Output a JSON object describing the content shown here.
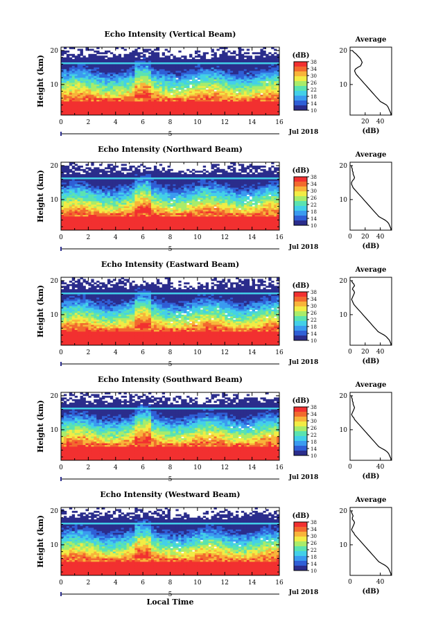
{
  "chart_data": [
    {
      "type": "heatmap",
      "title": "Echo Intensity (Vertical Beam)",
      "ylabel": "Height (km)",
      "xticks": [
        "0",
        "2",
        "4",
        "6",
        "8",
        "10",
        "12",
        "14",
        "16"
      ],
      "yticks": [
        "10",
        "20"
      ],
      "xlim": [
        0,
        16
      ],
      "ylim": [
        1,
        21
      ],
      "date_label": "Jul 2018",
      "day_marker": "5",
      "colorbar": {
        "title": "(dB)",
        "ticks": [
          "10",
          "14",
          "18",
          "22",
          "26",
          "30",
          "34",
          "38"
        ],
        "range": [
          10,
          38
        ]
      },
      "profile": {
        "title": "Average",
        "xlabel": "(dB)",
        "xticks": [
          "20",
          "40"
        ],
        "yticks": [
          "10",
          "20"
        ],
        "xlim": [
          0,
          55
        ],
        "points": [
          [
            3,
            20
          ],
          [
            5,
            19.5
          ],
          [
            8,
            19
          ],
          [
            10,
            18.5
          ],
          [
            12,
            18
          ],
          [
            14,
            17.5
          ],
          [
            15,
            17
          ],
          [
            16,
            16.5
          ],
          [
            15,
            16
          ],
          [
            14,
            15.5
          ],
          [
            10,
            15
          ],
          [
            7,
            14.5
          ],
          [
            6,
            14
          ],
          [
            7,
            13.5
          ],
          [
            8,
            13
          ],
          [
            10,
            12.5
          ],
          [
            12,
            12
          ],
          [
            14,
            11.5
          ],
          [
            16,
            11
          ],
          [
            18,
            10.5
          ],
          [
            20,
            10
          ],
          [
            22,
            9.5
          ],
          [
            24,
            9
          ],
          [
            26,
            8.5
          ],
          [
            28,
            8
          ],
          [
            30,
            7.5
          ],
          [
            32,
            7
          ],
          [
            34,
            6.5
          ],
          [
            36,
            6
          ],
          [
            38,
            5.5
          ],
          [
            40,
            5
          ],
          [
            44,
            4.5
          ],
          [
            48,
            4
          ],
          [
            50,
            3.5
          ],
          [
            51,
            3
          ],
          [
            52,
            2.5
          ],
          [
            53,
            2
          ],
          [
            54,
            1.5
          ],
          [
            54,
            1
          ]
        ]
      }
    },
    {
      "type": "heatmap",
      "title": "Echo Intensity (Northward Beam)",
      "ylabel": "Height (km)",
      "xticks": [
        "0",
        "2",
        "4",
        "6",
        "8",
        "10",
        "12",
        "14",
        "16"
      ],
      "yticks": [
        "10",
        "20"
      ],
      "xlim": [
        0,
        16
      ],
      "ylim": [
        1,
        21
      ],
      "date_label": "Jul 2018",
      "day_marker": "5",
      "colorbar": {
        "title": "(dB)",
        "ticks": [
          "10",
          "14",
          "18",
          "22",
          "26",
          "30",
          "34",
          "38"
        ],
        "range": [
          10,
          38
        ]
      },
      "profile": {
        "title": "Average",
        "xlabel": "(dB)",
        "xticks": [
          "0",
          "20",
          "40"
        ],
        "yticks": [
          "10",
          "20"
        ],
        "xlim": [
          0,
          55
        ],
        "points": [
          [
            2,
            20
          ],
          [
            2,
            19.5
          ],
          [
            3,
            19
          ],
          [
            3,
            18.5
          ],
          [
            4,
            18
          ],
          [
            4,
            17.5
          ],
          [
            5,
            17
          ],
          [
            6,
            16.5
          ],
          [
            5,
            16
          ],
          [
            3,
            15.5
          ],
          [
            2,
            15
          ],
          [
            2,
            14.5
          ],
          [
            3,
            14
          ],
          [
            4,
            13.5
          ],
          [
            6,
            13
          ],
          [
            8,
            12.5
          ],
          [
            10,
            12
          ],
          [
            12,
            11.5
          ],
          [
            14,
            11
          ],
          [
            16,
            10.5
          ],
          [
            18,
            10
          ],
          [
            20,
            9.5
          ],
          [
            22,
            9
          ],
          [
            24,
            8.5
          ],
          [
            26,
            8
          ],
          [
            28,
            7.5
          ],
          [
            30,
            7
          ],
          [
            32,
            6.5
          ],
          [
            34,
            6
          ],
          [
            36,
            5.5
          ],
          [
            38,
            5
          ],
          [
            42,
            4.5
          ],
          [
            46,
            4
          ],
          [
            49,
            3.5
          ],
          [
            51,
            3
          ],
          [
            52,
            2.5
          ],
          [
            53,
            2
          ],
          [
            54,
            1.5
          ],
          [
            54,
            1
          ]
        ]
      }
    },
    {
      "type": "heatmap",
      "title": "Echo Intensity (Eastward Beam)",
      "ylabel": "Height (km)",
      "xticks": [
        "0",
        "2",
        "4",
        "6",
        "8",
        "10",
        "12",
        "14",
        "16"
      ],
      "yticks": [
        "10",
        "20"
      ],
      "xlim": [
        0,
        16
      ],
      "ylim": [
        1,
        21
      ],
      "date_label": "Jul 2018",
      "day_marker": "5",
      "colorbar": {
        "title": "(dB)",
        "ticks": [
          "10",
          "14",
          "18",
          "22",
          "26",
          "30",
          "34",
          "38"
        ],
        "range": [
          10,
          38
        ]
      },
      "profile": {
        "title": "Average",
        "xlabel": "(dB)",
        "xticks": [
          "0",
          "20",
          "40"
        ],
        "yticks": [
          "10",
          "20"
        ],
        "xlim": [
          0,
          55
        ],
        "points": [
          [
            2,
            20
          ],
          [
            3,
            19.5
          ],
          [
            5,
            19
          ],
          [
            6,
            18.5
          ],
          [
            4,
            18
          ],
          [
            3,
            17.5
          ],
          [
            5,
            17
          ],
          [
            6,
            16.5
          ],
          [
            5,
            16
          ],
          [
            4,
            15.5
          ],
          [
            3,
            15
          ],
          [
            2,
            14.5
          ],
          [
            3,
            14
          ],
          [
            4,
            13.5
          ],
          [
            5,
            13
          ],
          [
            7,
            12.5
          ],
          [
            9,
            12
          ],
          [
            11,
            11.5
          ],
          [
            13,
            11
          ],
          [
            15,
            10.5
          ],
          [
            17,
            10
          ],
          [
            19,
            9.5
          ],
          [
            21,
            9
          ],
          [
            23,
            8.5
          ],
          [
            25,
            8
          ],
          [
            27,
            7.5
          ],
          [
            29,
            7
          ],
          [
            31,
            6.5
          ],
          [
            33,
            6
          ],
          [
            35,
            5.5
          ],
          [
            37,
            5
          ],
          [
            41,
            4.5
          ],
          [
            45,
            4
          ],
          [
            48,
            3.5
          ],
          [
            50,
            3
          ],
          [
            52,
            2.5
          ],
          [
            53,
            2
          ],
          [
            54,
            1.5
          ],
          [
            54,
            1
          ]
        ]
      }
    },
    {
      "type": "heatmap",
      "title": "Echo Intensity (Southward Beam)",
      "ylabel": "Height (km)",
      "xticks": [
        "0",
        "2",
        "4",
        "6",
        "8",
        "10",
        "12",
        "14",
        "16"
      ],
      "yticks": [
        "10",
        "20"
      ],
      "xlim": [
        0,
        16
      ],
      "ylim": [
        1,
        21
      ],
      "date_label": "Jul 2018",
      "day_marker": "5",
      "colorbar": {
        "title": "(dB)",
        "ticks": [
          "10",
          "14",
          "18",
          "22",
          "26",
          "30",
          "34",
          "38"
        ],
        "range": [
          10,
          38
        ]
      },
      "profile": {
        "title": "Average",
        "xlabel": "(dB)",
        "xticks": [
          "0",
          "40"
        ],
        "yticks": [
          "10",
          "20"
        ],
        "xlim": [
          0,
          55
        ],
        "points": [
          [
            2,
            20
          ],
          [
            2,
            19.5
          ],
          [
            3,
            19
          ],
          [
            3,
            18.5
          ],
          [
            4,
            18
          ],
          [
            4,
            17.5
          ],
          [
            5,
            17
          ],
          [
            6,
            16.5
          ],
          [
            5,
            16
          ],
          [
            4,
            15.5
          ],
          [
            3,
            15
          ],
          [
            2,
            14.5
          ],
          [
            3,
            14
          ],
          [
            5,
            13.5
          ],
          [
            6,
            13
          ],
          [
            8,
            12.5
          ],
          [
            10,
            12
          ],
          [
            12,
            11.5
          ],
          [
            14,
            11
          ],
          [
            16,
            10.5
          ],
          [
            18,
            10
          ],
          [
            20,
            9.5
          ],
          [
            22,
            9
          ],
          [
            24,
            8.5
          ],
          [
            26,
            8
          ],
          [
            28,
            7.5
          ],
          [
            30,
            7
          ],
          [
            32,
            6.5
          ],
          [
            34,
            6
          ],
          [
            36,
            5.5
          ],
          [
            38,
            5
          ],
          [
            42,
            4.5
          ],
          [
            46,
            4
          ],
          [
            49,
            3.5
          ],
          [
            51,
            3
          ],
          [
            52,
            2.5
          ],
          [
            53,
            2
          ],
          [
            54,
            1.5
          ],
          [
            54,
            1
          ]
        ]
      }
    },
    {
      "type": "heatmap",
      "title": "Echo Intensity (Westward Beam)",
      "ylabel": "Height (km)",
      "xlabel": "Local Time",
      "xticks": [
        "0",
        "2",
        "4",
        "6",
        "8",
        "10",
        "12",
        "14",
        "16"
      ],
      "yticks": [
        "10",
        "20"
      ],
      "xlim": [
        0,
        16
      ],
      "ylim": [
        1,
        21
      ],
      "date_label": "Jul 2018",
      "day_marker": "5",
      "colorbar": {
        "title": "(dB)",
        "ticks": [
          "10",
          "14",
          "18",
          "22",
          "26",
          "30",
          "34",
          "38"
        ],
        "range": [
          10,
          38
        ]
      },
      "profile": {
        "title": "Average",
        "xlabel": "(dB)",
        "xticks": [
          "0",
          "40"
        ],
        "yticks": [
          "10",
          "20"
        ],
        "xlim": [
          0,
          55
        ],
        "points": [
          [
            2,
            20
          ],
          [
            2,
            19.5
          ],
          [
            3,
            19
          ],
          [
            4,
            18.5
          ],
          [
            3,
            18
          ],
          [
            3,
            17.5
          ],
          [
            5,
            17
          ],
          [
            6,
            16.5
          ],
          [
            5,
            16
          ],
          [
            4,
            15.5
          ],
          [
            3,
            15
          ],
          [
            2,
            14.5
          ],
          [
            3,
            14
          ],
          [
            5,
            13.5
          ],
          [
            6,
            13
          ],
          [
            8,
            12.5
          ],
          [
            10,
            12
          ],
          [
            12,
            11.5
          ],
          [
            14,
            11
          ],
          [
            16,
            10.5
          ],
          [
            18,
            10
          ],
          [
            20,
            9.5
          ],
          [
            22,
            9
          ],
          [
            24,
            8.5
          ],
          [
            26,
            8
          ],
          [
            28,
            7.5
          ],
          [
            30,
            7
          ],
          [
            32,
            6.5
          ],
          [
            34,
            6
          ],
          [
            36,
            5.5
          ],
          [
            38,
            5
          ],
          [
            42,
            4.5
          ],
          [
            46,
            4
          ],
          [
            49,
            3.5
          ],
          [
            51,
            3
          ],
          [
            52,
            2.5
          ],
          [
            53,
            2
          ],
          [
            54,
            1.5
          ],
          [
            54,
            1
          ]
        ]
      }
    }
  ],
  "colormap": [
    "#2b2d8c",
    "#2f5fd6",
    "#3a9bf0",
    "#43d0e8",
    "#5be3b0",
    "#a9ec6a",
    "#f2ec45",
    "#f8b43a",
    "#f26a2e",
    "#f23030"
  ]
}
